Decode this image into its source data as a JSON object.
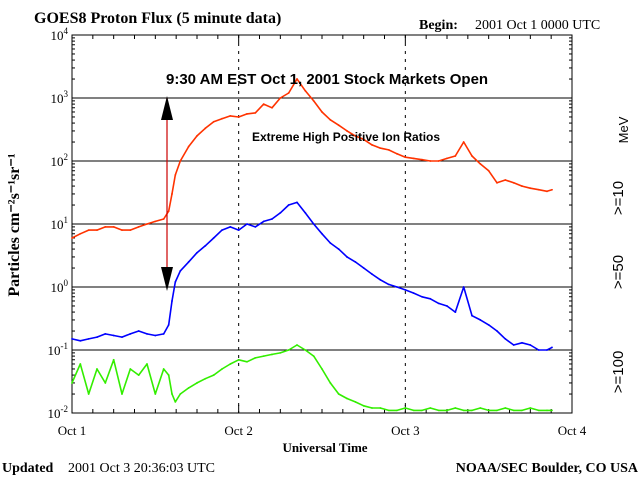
{
  "chart_data": {
    "type": "line",
    "title": "GOES8 Proton Flux (5 minute data)",
    "begin_label": "Begin:",
    "begin_value": "2001 Oct 1 0000 UTC",
    "xlabel": "Universal Time",
    "ylabel": "Particles cm⁻²s⁻¹sr⁻¹",
    "x_unit": "days since Oct 1 0000 UTC",
    "xlim": [
      0,
      3
    ],
    "ylim": [
      0.01,
      10000
    ],
    "yscale": "log",
    "grid": true,
    "x_ticks": [
      {
        "value": 0,
        "label": "Oct 1"
      },
      {
        "value": 1,
        "label": "Oct 2"
      },
      {
        "value": 2,
        "label": "Oct 3"
      },
      {
        "value": 3,
        "label": "Oct 4"
      }
    ],
    "y_ticks": [
      {
        "value": 0.01,
        "base": "10",
        "exp": "-2"
      },
      {
        "value": 0.1,
        "base": "10",
        "exp": "-1"
      },
      {
        "value": 1,
        "base": "10",
        "exp": "0"
      },
      {
        "value": 10,
        "base": "10",
        "exp": "1"
      },
      {
        "value": 100,
        "base": "10",
        "exp": "2"
      },
      {
        "value": 1000,
        "base": "10",
        "exp": "3"
      },
      {
        "value": 10000,
        "base": "10",
        "exp": "4"
      }
    ],
    "legend_placement": "right",
    "unit_label": "MeV",
    "series": [
      {
        "name": ">=10",
        "color": "#ff3300",
        "x": [
          0.0,
          0.05,
          0.1,
          0.15,
          0.2,
          0.25,
          0.3,
          0.35,
          0.4,
          0.45,
          0.5,
          0.55,
          0.58,
          0.6,
          0.62,
          0.65,
          0.7,
          0.75,
          0.8,
          0.85,
          0.9,
          0.95,
          1.0,
          1.05,
          1.1,
          1.15,
          1.2,
          1.25,
          1.3,
          1.35,
          1.4,
          1.45,
          1.5,
          1.55,
          1.6,
          1.65,
          1.7,
          1.75,
          1.8,
          1.85,
          1.9,
          1.95,
          2.0,
          2.05,
          2.1,
          2.15,
          2.2,
          2.25,
          2.3,
          2.35,
          2.4,
          2.45,
          2.5,
          2.55,
          2.6,
          2.65,
          2.7,
          2.75,
          2.8,
          2.85,
          2.88
        ],
        "values": [
          6,
          7,
          8,
          8,
          9,
          9,
          8,
          8,
          9,
          10,
          11,
          12,
          16,
          30,
          60,
          100,
          170,
          250,
          330,
          420,
          470,
          520,
          500,
          560,
          580,
          800,
          700,
          1000,
          1200,
          2000,
          1300,
          900,
          600,
          450,
          370,
          300,
          250,
          220,
          180,
          160,
          150,
          130,
          115,
          110,
          105,
          100,
          100,
          110,
          120,
          200,
          120,
          90,
          70,
          45,
          50,
          45,
          40,
          37,
          35,
          33,
          35
        ]
      },
      {
        "name": ">=50",
        "color": "#0000ff",
        "x": [
          0.0,
          0.05,
          0.1,
          0.15,
          0.2,
          0.25,
          0.3,
          0.35,
          0.4,
          0.45,
          0.5,
          0.55,
          0.58,
          0.6,
          0.62,
          0.65,
          0.7,
          0.75,
          0.8,
          0.85,
          0.9,
          0.95,
          1.0,
          1.05,
          1.1,
          1.15,
          1.2,
          1.25,
          1.3,
          1.35,
          1.4,
          1.45,
          1.5,
          1.55,
          1.6,
          1.65,
          1.7,
          1.75,
          1.8,
          1.85,
          1.9,
          1.95,
          2.0,
          2.05,
          2.1,
          2.15,
          2.2,
          2.25,
          2.3,
          2.35,
          2.4,
          2.45,
          2.5,
          2.55,
          2.6,
          2.65,
          2.7,
          2.75,
          2.8,
          2.85,
          2.88
        ],
        "values": [
          0.15,
          0.14,
          0.15,
          0.16,
          0.18,
          0.17,
          0.16,
          0.18,
          0.2,
          0.18,
          0.17,
          0.18,
          0.25,
          0.6,
          1.2,
          1.8,
          2.5,
          3.5,
          4.5,
          6,
          8,
          9,
          8,
          10,
          9,
          11,
          12,
          15,
          20,
          22,
          15,
          10,
          7,
          5,
          4,
          3,
          2.5,
          2,
          1.6,
          1.3,
          1.1,
          1.0,
          0.9,
          0.8,
          0.7,
          0.65,
          0.55,
          0.5,
          0.4,
          1.0,
          0.35,
          0.3,
          0.25,
          0.2,
          0.15,
          0.12,
          0.13,
          0.12,
          0.1,
          0.1,
          0.11
        ]
      },
      {
        "name": ">=100",
        "color": "#33ee00",
        "x": [
          0.0,
          0.05,
          0.1,
          0.15,
          0.2,
          0.25,
          0.3,
          0.35,
          0.4,
          0.45,
          0.5,
          0.55,
          0.58,
          0.6,
          0.62,
          0.65,
          0.7,
          0.75,
          0.8,
          0.85,
          0.9,
          0.95,
          1.0,
          1.05,
          1.1,
          1.15,
          1.2,
          1.25,
          1.3,
          1.35,
          1.4,
          1.45,
          1.5,
          1.55,
          1.6,
          1.65,
          1.7,
          1.75,
          1.8,
          1.85,
          1.9,
          1.95,
          2.0,
          2.05,
          2.1,
          2.15,
          2.2,
          2.25,
          2.3,
          2.35,
          2.4,
          2.45,
          2.5,
          2.55,
          2.6,
          2.65,
          2.7,
          2.75,
          2.8,
          2.85,
          2.88
        ],
        "values": [
          0.03,
          0.06,
          0.02,
          0.05,
          0.03,
          0.07,
          0.02,
          0.05,
          0.04,
          0.06,
          0.02,
          0.05,
          0.04,
          0.02,
          0.015,
          0.02,
          0.025,
          0.03,
          0.035,
          0.04,
          0.05,
          0.06,
          0.07,
          0.065,
          0.075,
          0.08,
          0.085,
          0.09,
          0.1,
          0.12,
          0.1,
          0.08,
          0.05,
          0.03,
          0.02,
          0.017,
          0.015,
          0.013,
          0.012,
          0.012,
          0.011,
          0.011,
          0.012,
          0.011,
          0.011,
          0.012,
          0.011,
          0.011,
          0.012,
          0.011,
          0.011,
          0.012,
          0.011,
          0.011,
          0.012,
          0.011,
          0.011,
          0.012,
          0.011,
          0.011,
          0.011
        ]
      }
    ],
    "annotations": {
      "marker_x": 0.57,
      "market_text": "9:30 AM EST Oct 1, 2001 Stock Markets Open",
      "ion_text": "Extreme High Positive Ion Ratios"
    }
  },
  "footer": {
    "updated_label": "Updated",
    "updated_value": "2001 Oct  3 20:36:03 UTC",
    "source": "NOAA/SEC Boulder, CO USA"
  }
}
